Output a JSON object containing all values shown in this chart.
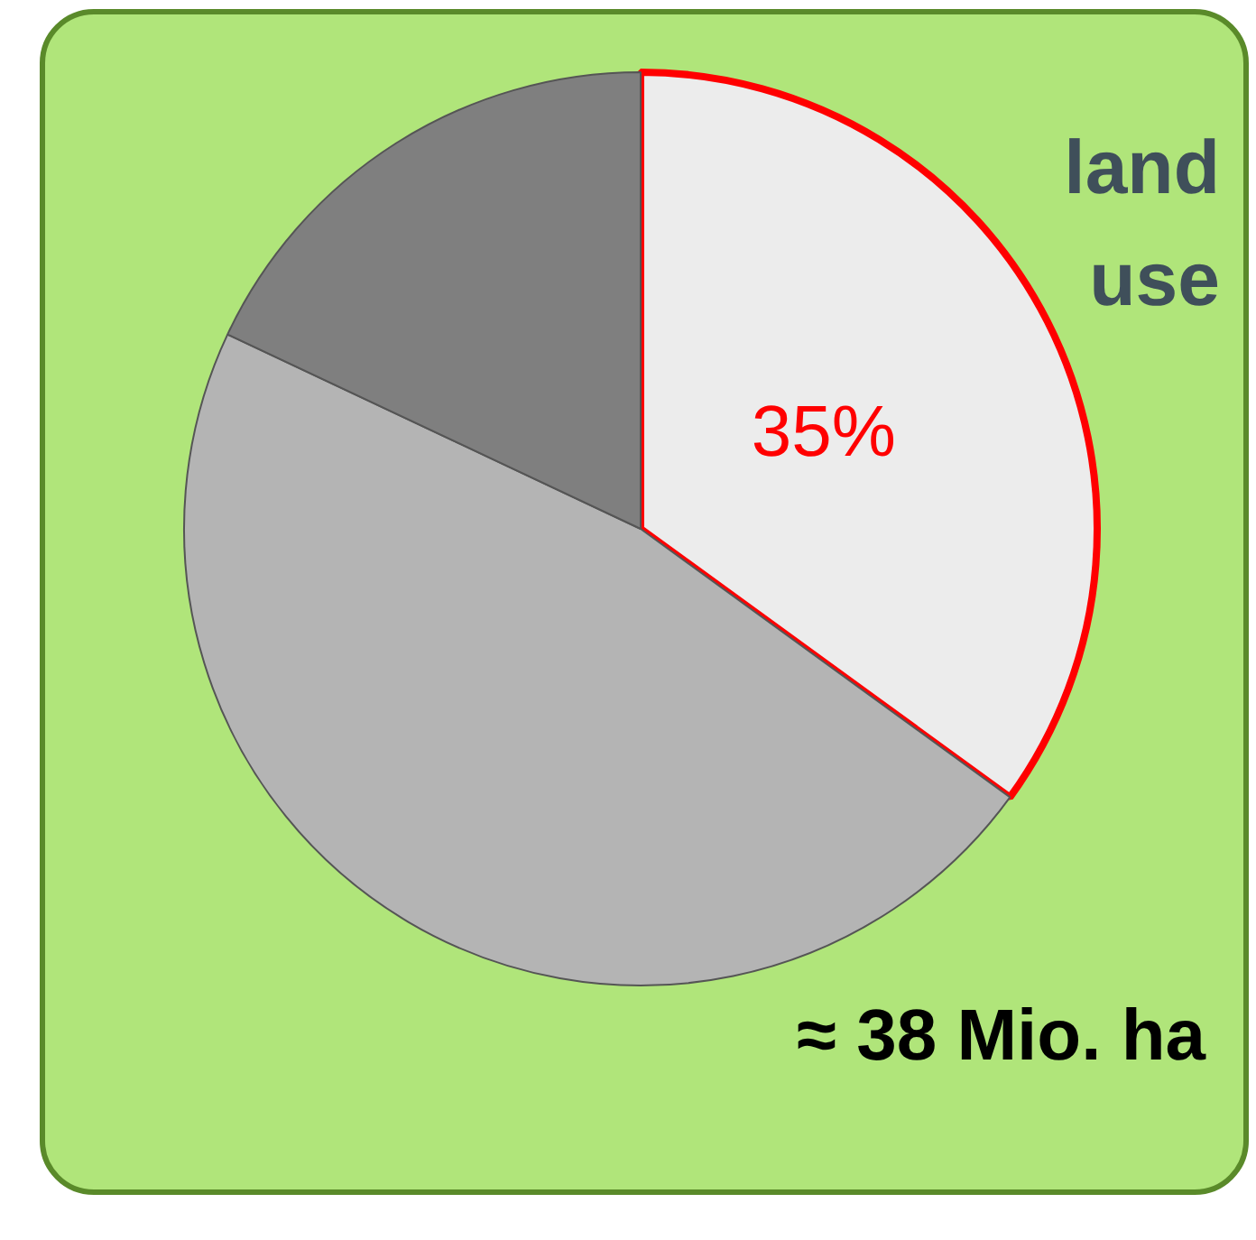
{
  "chart_data": {
    "type": "pie",
    "title": "land use",
    "categories": [
      null,
      null,
      null
    ],
    "values": [
      35,
      47,
      18
    ],
    "colors": [
      "#ececec",
      "#b4b4b4",
      "#7f7f7f"
    ],
    "value_labels": [
      "35%",
      null,
      null
    ],
    "annotations": [
      "≈ 38 Mio. ha"
    ],
    "legend": false
  }
}
